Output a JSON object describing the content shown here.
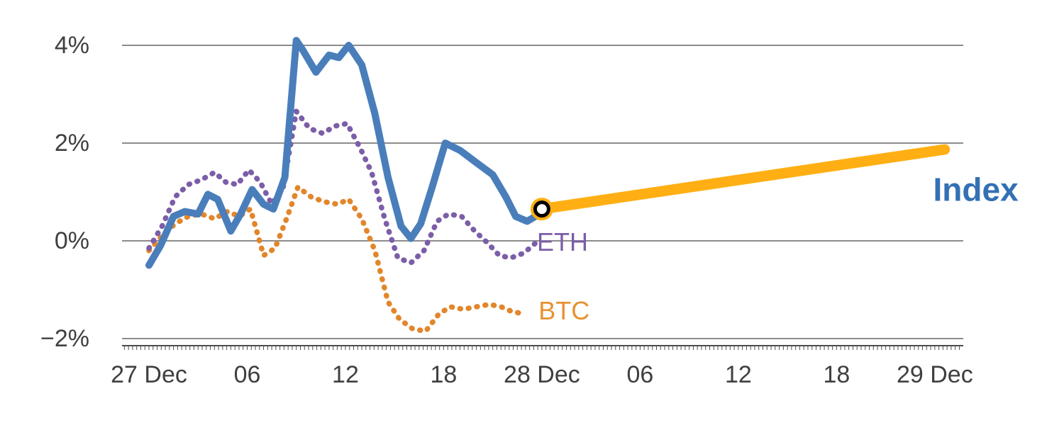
{
  "chart_data": {
    "type": "line",
    "title": "",
    "xlabel": "",
    "ylabel": "",
    "x_unit": "hours_from_start",
    "ylim": [
      -2.3,
      4.5
    ],
    "grid": true,
    "y_ticks": [
      {
        "value": 4,
        "label": "4%"
      },
      {
        "value": 2,
        "label": "2%"
      },
      {
        "value": 0,
        "label": "0%"
      },
      {
        "value": -2,
        "label": "−2%"
      }
    ],
    "x_ticks": [
      {
        "hour": 0,
        "label": "27 Dec"
      },
      {
        "hour": 6,
        "label": "06"
      },
      {
        "hour": 12,
        "label": "12"
      },
      {
        "hour": 18,
        "label": "18"
      },
      {
        "hour": 24,
        "label": "28 Dec"
      },
      {
        "hour": 30,
        "label": "06"
      },
      {
        "hour": 36,
        "label": "12"
      },
      {
        "hour": 42,
        "label": "18"
      },
      {
        "hour": 48,
        "label": "29 Dec"
      }
    ],
    "series": [
      {
        "name": "BTC",
        "color": "#e2862a",
        "line_style": "dotted",
        "hours": [
          0,
          0.8,
          1.6,
          2.4,
          3.2,
          4.0,
          4.8,
          5.5,
          6.2,
          7.0,
          7.7,
          8.4,
          9.1,
          9.9,
          10.7,
          11.5,
          12.2,
          13.0,
          13.8,
          14.6,
          15.3,
          16.1,
          16.9,
          17.7,
          18.4,
          19.2,
          20.0,
          20.8,
          21.5,
          22.2,
          23.0
        ],
        "values": [
          -0.2,
          0.1,
          0.35,
          0.5,
          0.55,
          0.45,
          0.6,
          0.5,
          0.65,
          -0.3,
          -0.15,
          0.45,
          1.1,
          0.9,
          0.8,
          0.75,
          0.85,
          0.45,
          -0.2,
          -1.25,
          -1.6,
          -1.8,
          -1.85,
          -1.5,
          -1.35,
          -1.4,
          -1.35,
          -1.3,
          -1.35,
          -1.45,
          -1.5
        ],
        "label": {
          "text": "BTC",
          "hour": 23.8,
          "value": -1.43,
          "color": "#e8912f",
          "size": 36,
          "bold": false
        }
      },
      {
        "name": "ETH",
        "color": "#7b5ea7",
        "line_style": "dotted",
        "hours": [
          0,
          0.8,
          1.6,
          2.4,
          3.2,
          4.0,
          4.7,
          5.4,
          6.1,
          6.8,
          7.5,
          8.2,
          9.0,
          9.8,
          10.6,
          11.4,
          12.1,
          12.9,
          13.6,
          14.4,
          15.2,
          16.0,
          16.8,
          17.6,
          18.3,
          19.1,
          19.9,
          20.7,
          21.4,
          22.1,
          22.9,
          23.6
        ],
        "values": [
          -0.15,
          0.3,
          0.9,
          1.15,
          1.25,
          1.4,
          1.2,
          1.15,
          1.45,
          1.2,
          0.75,
          1.1,
          2.65,
          2.3,
          2.2,
          2.35,
          2.4,
          1.9,
          1.4,
          0.45,
          -0.35,
          -0.45,
          -0.2,
          0.4,
          0.55,
          0.5,
          0.2,
          -0.05,
          -0.3,
          -0.35,
          -0.25,
          -0.05
        ],
        "label": {
          "text": "ETH",
          "hour": 23.7,
          "value": -0.02,
          "color": "#7b5ea7",
          "size": 36,
          "bold": false
        }
      },
      {
        "name": "Index",
        "color": "#4a7ebb",
        "line_style": "solid",
        "hours": [
          0,
          0.7,
          1.5,
          2.2,
          3.0,
          3.6,
          4.2,
          5.0,
          5.6,
          6.3,
          7.0,
          7.6,
          8.3,
          9.0,
          9.4,
          10.2,
          11.0,
          11.6,
          12.2,
          13.0,
          13.8,
          14.6,
          15.4,
          16.0,
          16.6,
          17.3,
          18.1,
          19.0,
          20.0,
          21.0,
          21.8,
          22.4,
          23.1,
          23.6,
          24.0
        ],
        "values": [
          -0.5,
          -0.1,
          0.5,
          0.6,
          0.55,
          0.95,
          0.85,
          0.2,
          0.55,
          1.05,
          0.75,
          0.65,
          1.3,
          4.1,
          3.9,
          3.45,
          3.8,
          3.75,
          4.0,
          3.6,
          2.6,
          1.3,
          0.3,
          0.05,
          0.35,
          1.1,
          2.0,
          1.85,
          1.6,
          1.35,
          0.9,
          0.5,
          0.4,
          0.5,
          0.65
        ],
        "label": null
      },
      {
        "name": "Index projection",
        "color": "#ffaf14",
        "line_style": "solid-thick",
        "hours": [
          24,
          48.6
        ],
        "values": [
          0.65,
          1.87
        ],
        "label": {
          "text": "Index",
          "hour": 47.9,
          "value": 1.05,
          "color": "#3470b5",
          "size": 46,
          "bold": true
        }
      }
    ],
    "marker": {
      "series": "Index",
      "hour": 24,
      "value": 0.65,
      "outer_color": "#ffaf14",
      "ring_color": "#000000",
      "center_color": "#ffffff"
    }
  },
  "colors": {
    "grid": "#8c8c8c",
    "axis": "#4d4d4d",
    "tick_text": "#3f3f3f"
  }
}
